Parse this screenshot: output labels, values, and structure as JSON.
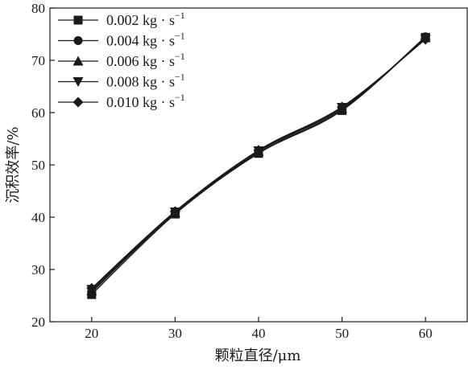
{
  "chart_data": {
    "type": "line",
    "x": [
      20,
      30,
      40,
      50,
      60
    ],
    "xlabel": "颗粒直径/μm",
    "ylabel": "沉积效率/%",
    "xlim": [
      15,
      65
    ],
    "ylim": [
      20,
      80
    ],
    "xticks": [
      "20",
      "30",
      "40",
      "50",
      "60"
    ],
    "yticks": [
      "20",
      "30",
      "40",
      "50",
      "60",
      "70",
      "80"
    ],
    "grid": false,
    "legend_position": "top-left",
    "line_color": "#1a1a1a",
    "series": [
      {
        "name": "0.002 kg · s",
        "name_sup": "−1",
        "marker": "square",
        "values": [
          25.2,
          40.6,
          52.2,
          60.4,
          74.4
        ]
      },
      {
        "name": "0.004 kg · s",
        "name_sup": "−1",
        "marker": "circle",
        "values": [
          25.6,
          40.8,
          52.4,
          60.6,
          74.5
        ]
      },
      {
        "name": "0.006 kg · s",
        "name_sup": "−1",
        "marker": "triangle-up",
        "values": [
          25.9,
          40.9,
          52.6,
          60.8,
          74.3
        ]
      },
      {
        "name": "0.008 kg · s",
        "name_sup": "−1",
        "marker": "triangle-down",
        "values": [
          26.2,
          41.0,
          52.7,
          61.0,
          74.1
        ]
      },
      {
        "name": "0.010 kg · s",
        "name_sup": "−1",
        "marker": "diamond",
        "values": [
          26.4,
          41.1,
          52.8,
          61.1,
          74.0
        ]
      }
    ]
  }
}
